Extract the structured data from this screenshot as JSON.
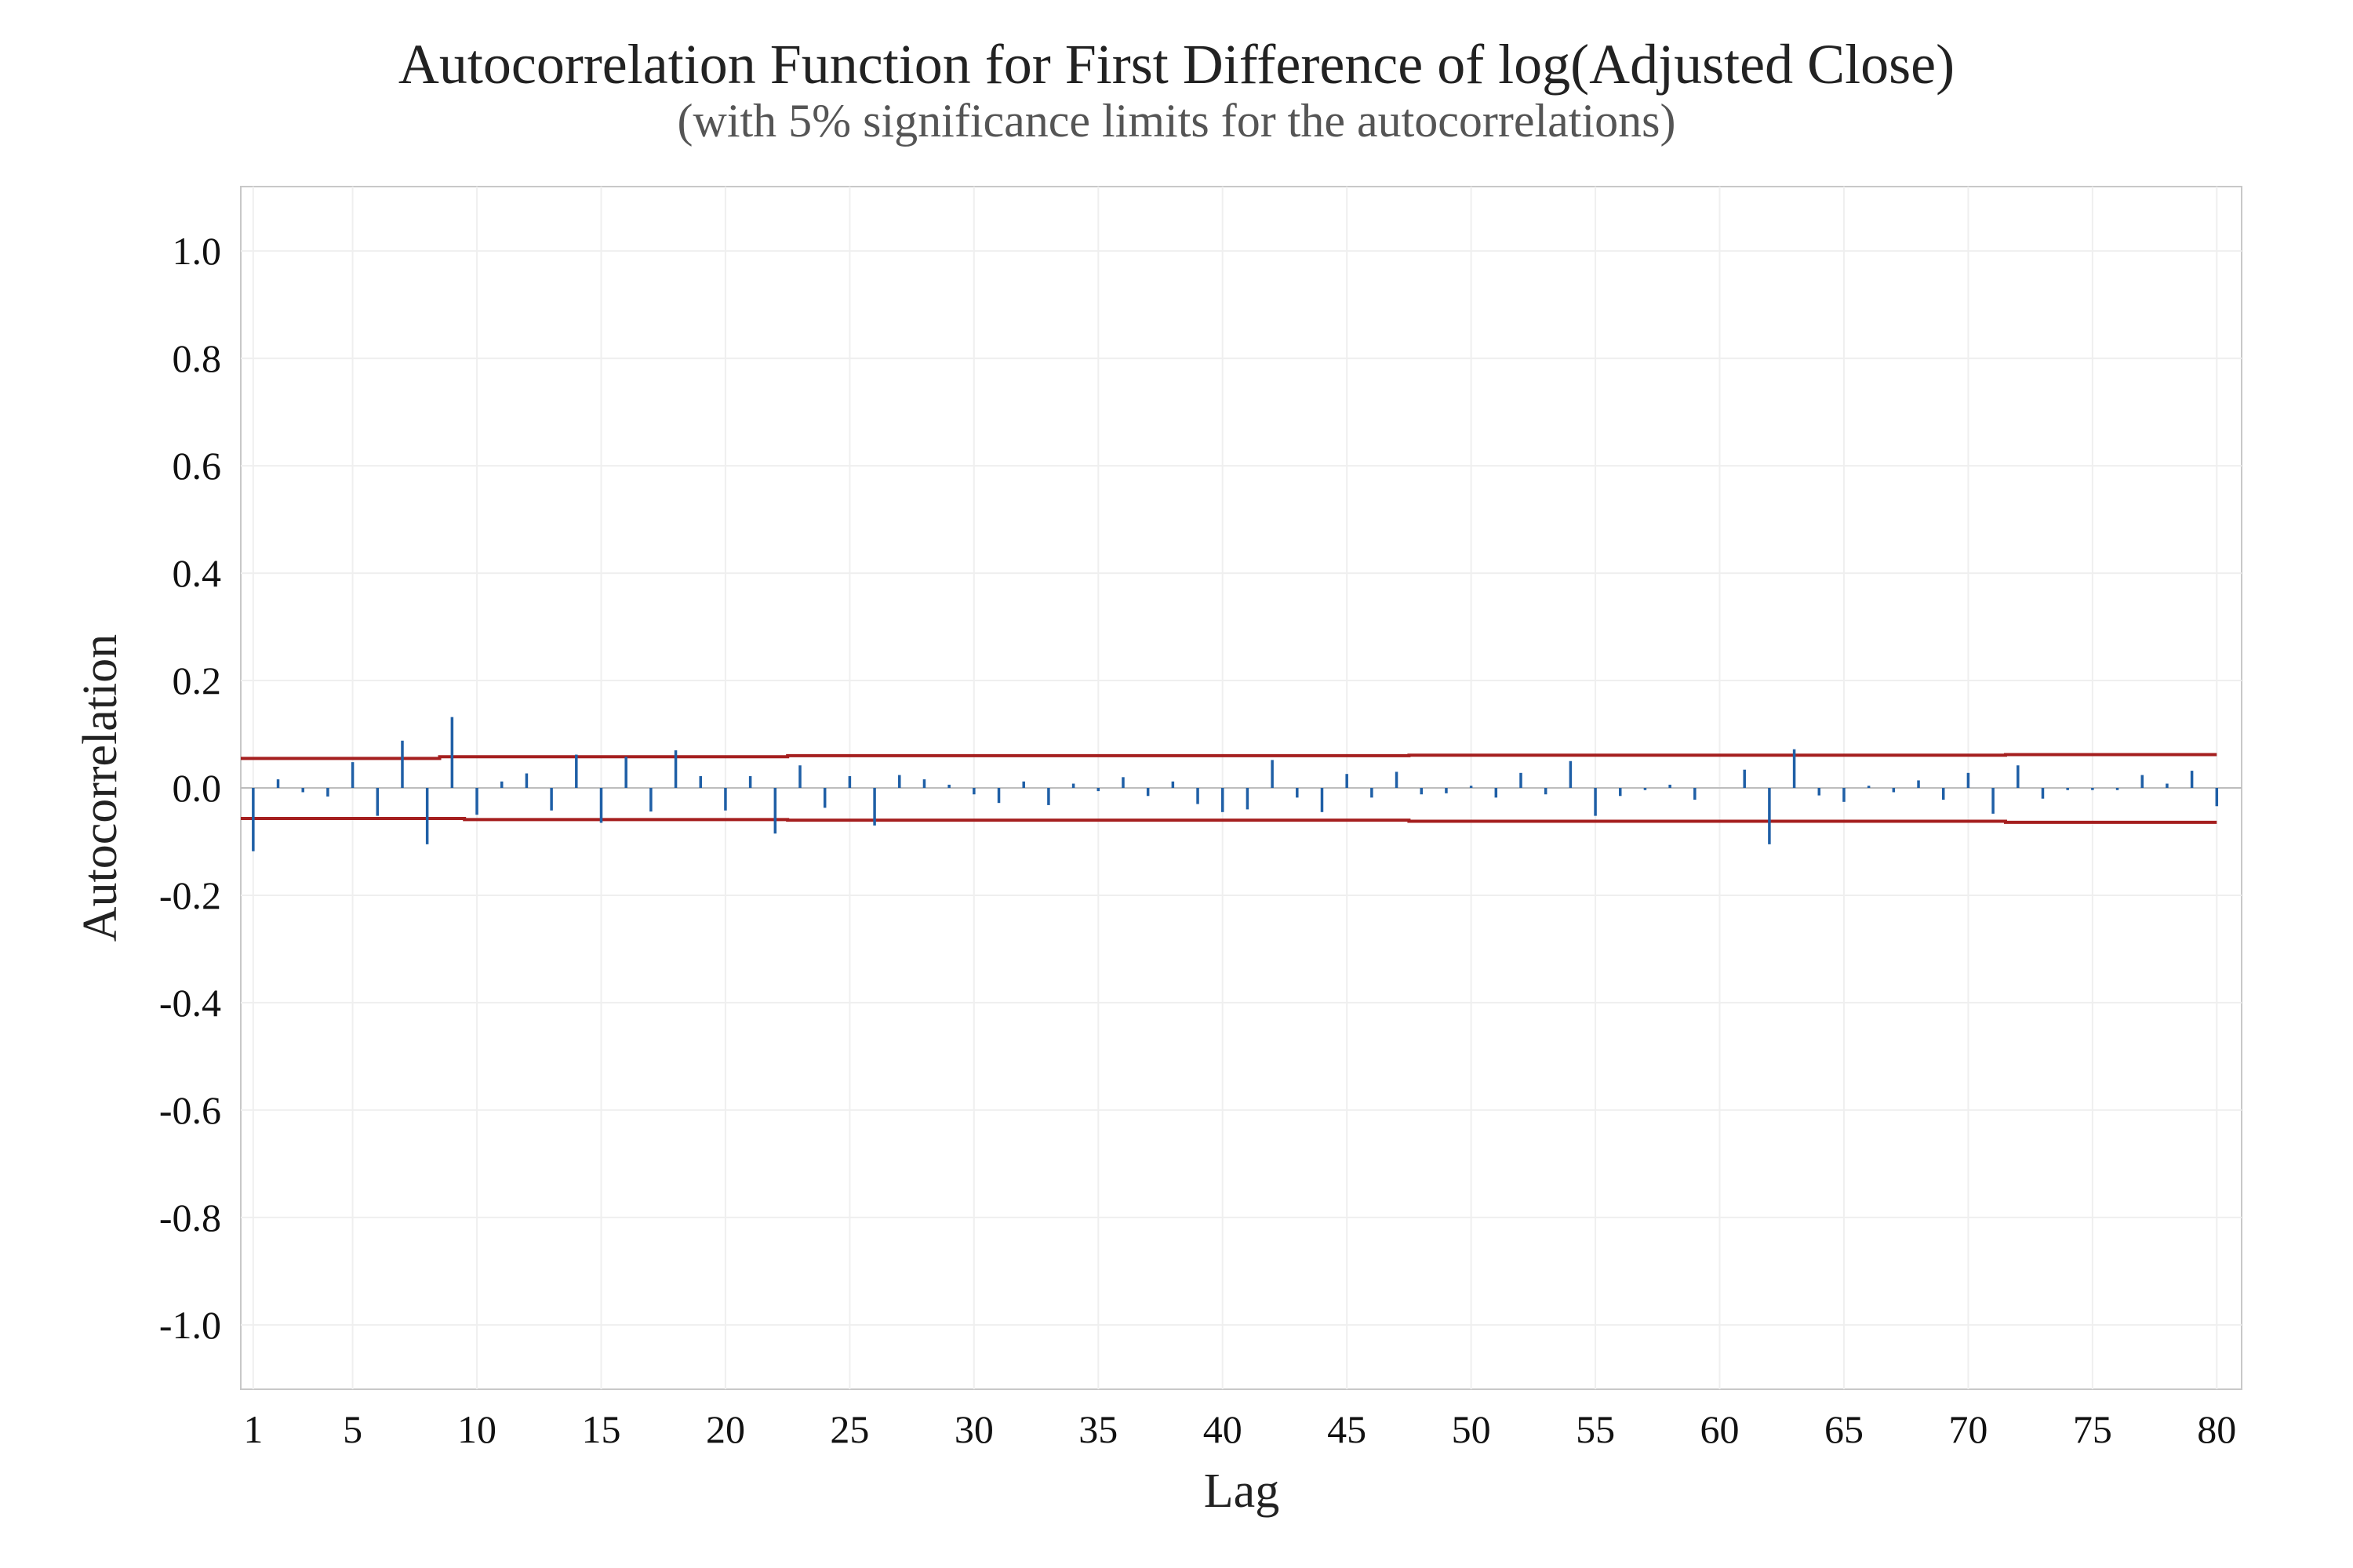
{
  "chart_data": {
    "type": "bar",
    "title": "Autocorrelation Function for First Difference of log(Adjusted Close)",
    "subtitle": "(with 5% significance limits for the autocorrelations)",
    "xlabel": "Lag",
    "ylabel": "Autocorrelation",
    "xlim": [
      0.5,
      81
    ],
    "ylim": [
      -1.12,
      1.12
    ],
    "x_ticks": [
      1,
      5,
      10,
      15,
      20,
      25,
      30,
      35,
      40,
      45,
      50,
      55,
      60,
      65,
      70,
      75,
      80
    ],
    "x_tick_labels": [
      "1",
      "5",
      "10",
      "15",
      "20",
      "25",
      "30",
      "35",
      "40",
      "45",
      "50",
      "55",
      "60",
      "65",
      "70",
      "75",
      "80"
    ],
    "y_ticks": [
      1.0,
      0.8,
      0.6,
      0.4,
      0.2,
      0.0,
      -0.2,
      -0.4,
      -0.6,
      -0.8,
      -1.0
    ],
    "y_tick_labels": [
      "1.0",
      "0.8",
      "0.6",
      "0.4",
      "0.2",
      "0.0",
      "-0.2",
      "-0.4",
      "-0.6",
      "-0.8",
      "-1.0"
    ],
    "grid": true,
    "series": [
      {
        "name": "",
        "color": "#1f5fa6",
        "x": [
          1,
          2,
          3,
          4,
          5,
          6,
          7,
          8,
          9,
          10,
          11,
          12,
          13,
          14,
          15,
          16,
          17,
          18,
          19,
          20,
          21,
          22,
          23,
          24,
          25,
          26,
          27,
          28,
          29,
          30,
          31,
          32,
          33,
          34,
          35,
          36,
          37,
          38,
          39,
          40,
          41,
          42,
          43,
          44,
          45,
          46,
          47,
          48,
          49,
          50,
          51,
          52,
          53,
          54,
          55,
          56,
          57,
          58,
          59,
          60,
          61,
          62,
          63,
          64,
          65,
          66,
          67,
          68,
          69,
          70,
          71,
          72,
          73,
          74,
          75,
          76,
          77,
          78,
          79,
          80
        ],
        "values": [
          -0.118,
          0.016,
          -0.008,
          -0.016,
          0.048,
          -0.052,
          0.088,
          -0.105,
          0.132,
          -0.05,
          0.012,
          0.027,
          -0.042,
          0.062,
          -0.065,
          0.058,
          -0.044,
          0.07,
          0.022,
          -0.042,
          0.022,
          -0.085,
          0.042,
          -0.037,
          0.022,
          -0.07,
          0.024,
          0.016,
          0.006,
          -0.012,
          -0.028,
          0.012,
          -0.032,
          0.008,
          -0.006,
          0.02,
          -0.015,
          0.012,
          -0.03,
          -0.045,
          -0.04,
          0.052,
          -0.018,
          -0.045,
          0.026,
          -0.018,
          0.03,
          -0.012,
          -0.01,
          0.004,
          -0.018,
          0.028,
          -0.012,
          0.05,
          -0.052,
          -0.015,
          -0.004,
          0.006,
          -0.022,
          0.0,
          0.034,
          -0.105,
          0.072,
          -0.014,
          -0.026,
          0.004,
          -0.008,
          0.014,
          -0.022,
          0.028,
          -0.048,
          0.042,
          -0.02,
          -0.004,
          -0.004,
          -0.004,
          0.024,
          0.008,
          0.032,
          -0.034
        ]
      }
    ],
    "significance_limits": {
      "color": "#a51f1f",
      "upper": [
        {
          "from_lag": 0.5,
          "to_lag": 8.5,
          "value": 0.055
        },
        {
          "from_lag": 8.5,
          "to_lag": 22.5,
          "value": 0.058
        },
        {
          "from_lag": 22.5,
          "to_lag": 47.5,
          "value": 0.06
        },
        {
          "from_lag": 47.5,
          "to_lag": 71.5,
          "value": 0.061
        },
        {
          "from_lag": 71.5,
          "to_lag": 80,
          "value": 0.062
        }
      ],
      "lower": [
        {
          "from_lag": 0.5,
          "to_lag": 9.5,
          "value": -0.057
        },
        {
          "from_lag": 9.5,
          "to_lag": 22.5,
          "value": -0.059
        },
        {
          "from_lag": 22.5,
          "to_lag": 47.5,
          "value": -0.06
        },
        {
          "from_lag": 47.5,
          "to_lag": 71.5,
          "value": -0.062
        },
        {
          "from_lag": 71.5,
          "to_lag": 80,
          "value": -0.064
        }
      ]
    }
  }
}
